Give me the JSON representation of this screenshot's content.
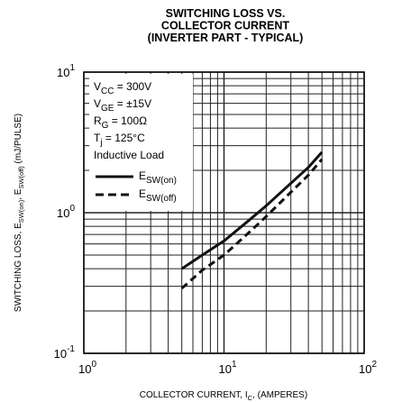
{
  "chart_data": {
    "type": "line",
    "title": [
      "SWITCHING LOSS VS.",
      "COLLECTOR CURRENT",
      "(INVERTER PART - TYPICAL)"
    ],
    "xlabel": {
      "main": "COLLECTOR CURRENT, I",
      "sub": "C",
      "tail": ", (AMPERES)"
    },
    "ylabel": {
      "a": "SWITCHING LOSS, E",
      "a_sub": "SW(on)",
      "b": ", E",
      "b_sub": "SW(off)",
      "c": " (mJ/PULSE)"
    },
    "x_scale": "log",
    "y_scale": "log",
    "xlim": [
      1,
      100
    ],
    "ylim": [
      0.1,
      10
    ],
    "grid": true,
    "x_ticks": [
      {
        "value": 1,
        "base": "10",
        "exp": "0"
      },
      {
        "value": 10,
        "base": "10",
        "exp": "1"
      },
      {
        "value": 100,
        "base": "10",
        "exp": "2"
      }
    ],
    "y_ticks": [
      {
        "value": 0.1,
        "base": "10",
        "exp": "-1"
      },
      {
        "value": 1,
        "base": "10",
        "exp": "0"
      },
      {
        "value": 10,
        "base": "10",
        "exp": "1"
      }
    ],
    "conditions": [
      {
        "main": "V",
        "sub": "CC",
        "rest": " = 300V"
      },
      {
        "main": "V",
        "sub": "GE",
        "rest": " = ±15V"
      },
      {
        "main": "R",
        "sub": "G",
        "rest": " = 100Ω"
      },
      {
        "main": "T",
        "sub": "j",
        "rest": " = 125°C"
      },
      {
        "main": "Inductive Load",
        "sub": "",
        "rest": ""
      }
    ],
    "series": [
      {
        "name_main": "E",
        "name_sub": "SW(on)",
        "style": "solid",
        "x": [
          5,
          7,
          10,
          15,
          20,
          30,
          40,
          50
        ],
        "y": [
          0.4,
          0.5,
          0.63,
          0.88,
          1.12,
          1.62,
          2.1,
          2.7
        ]
      },
      {
        "name_main": "E",
        "name_sub": "SW(off)",
        "style": "dashed",
        "x": [
          5,
          7,
          10,
          15,
          20,
          30,
          40,
          50
        ],
        "y": [
          0.29,
          0.39,
          0.5,
          0.72,
          0.94,
          1.4,
          1.85,
          2.4
        ]
      }
    ],
    "colors": {
      "line": "#111111",
      "grid": "#222222",
      "background": "#ffffff"
    }
  }
}
